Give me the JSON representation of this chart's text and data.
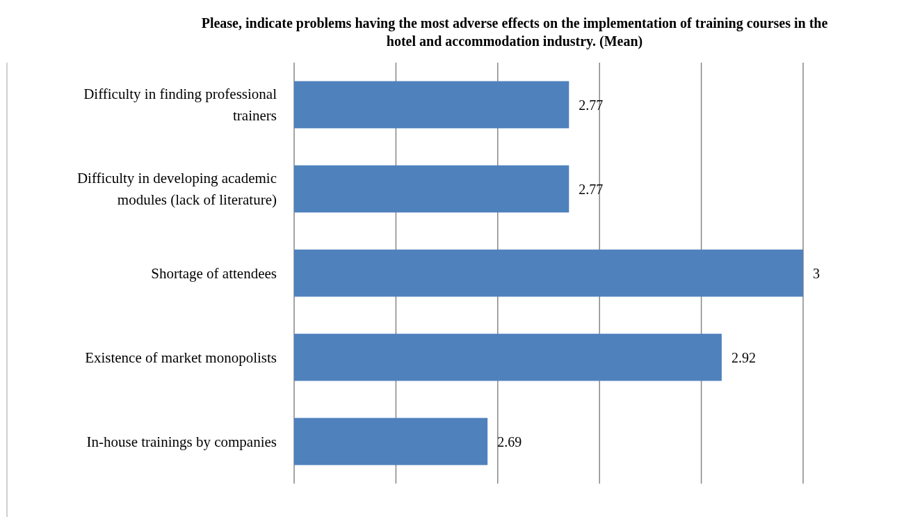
{
  "chart_data": {
    "type": "bar",
    "orientation": "horizontal",
    "title": "Please, indicate problems having the most adverse effects on the implementation of training courses in the hotel and accommodation industry. (Mean)",
    "categories": [
      "Difficulty in finding professional trainers",
      "Difficulty in developing academic modules (lack of literature)",
      "Shortage of attendees",
      "Existence of market monopolists",
      "In-house trainings by companies"
    ],
    "values": [
      2.77,
      2.77,
      3,
      2.92,
      2.69
    ],
    "color": "#4f81bd",
    "xlim": [
      2.5,
      3
    ],
    "xticks": [
      {
        "value": 2.5,
        "label": null
      },
      {
        "value": 2.6,
        "label": null
      },
      {
        "value": 2.7,
        "label": null
      },
      {
        "value": 2.8,
        "label": null
      },
      {
        "value": 2.9,
        "label": null
      },
      {
        "value": 3,
        "label": null
      }
    ],
    "grid": "x",
    "tick_labels": "y",
    "data_labels": true
  }
}
